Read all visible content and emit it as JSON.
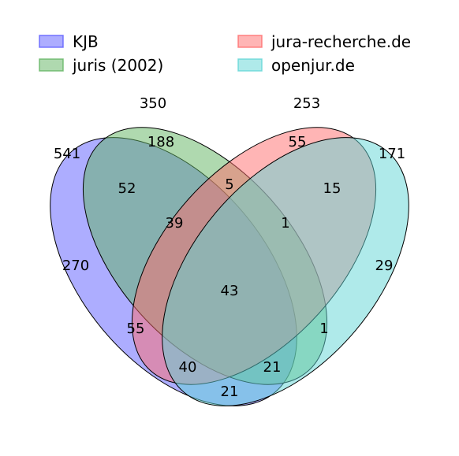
{
  "sets": [
    {
      "key": "kjb",
      "name": "KJB",
      "total": "541",
      "color": "#5b5bff"
    },
    {
      "key": "juris",
      "name": "juris (2002)",
      "total": "350",
      "color": "#5fb35f"
    },
    {
      "key": "jura",
      "name": "jura-recherche.de",
      "total": "253",
      "color": "#ff6b6b"
    },
    {
      "key": "openjur",
      "name": "openjur.de",
      "total": "171",
      "color": "#5fd6d6"
    }
  ],
  "regions": {
    "kjb_only": "270",
    "juris_only": "188",
    "jura_only": "55",
    "openjur_only": "29",
    "kjb_juris": "52",
    "juris_jura": "5",
    "jura_openjur": "15",
    "kjb_juris_jura": "39",
    "juris_jura_openjur": "1",
    "all_four": "43",
    "kjb_jura": "55",
    "juris_openjur": "1",
    "kjb_jura_openjur": "40",
    "kjb_juris_openjur": "21",
    "kjb_openjur": "21"
  }
}
